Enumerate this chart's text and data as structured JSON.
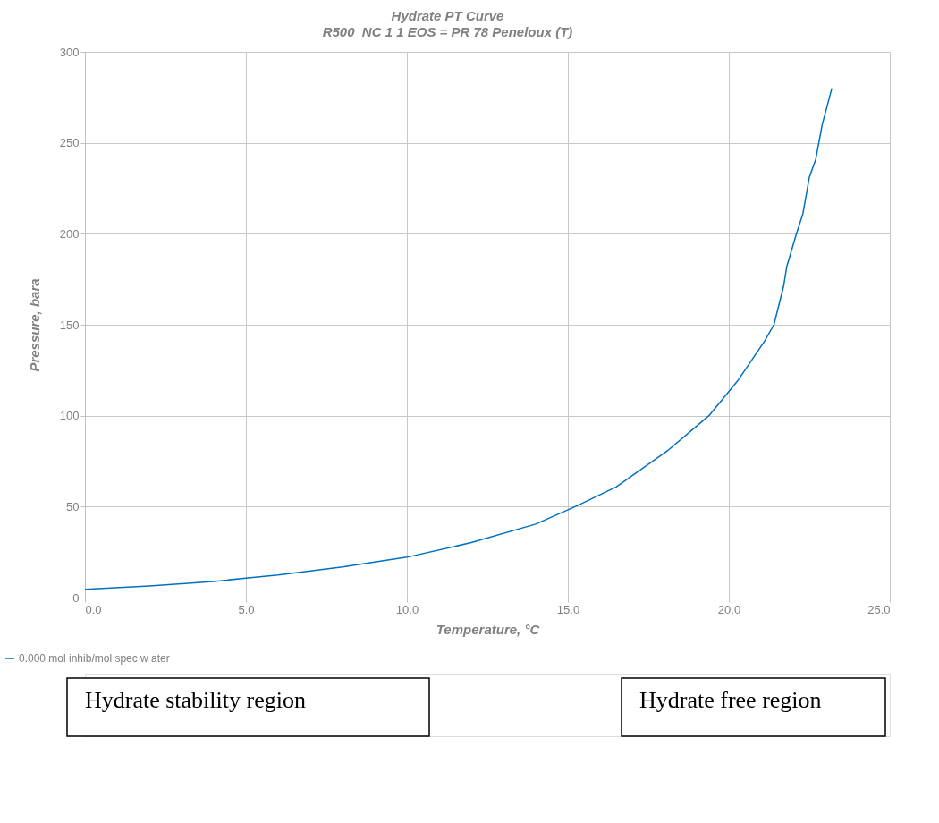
{
  "chart_data": {
    "type": "line",
    "title": "Hydrate PT Curve",
    "subtitle": "R500_NC 1 1  EOS = PR 78 Peneloux (T)",
    "xlabel": "Temperature, °C",
    "ylabel": "Pressure, bara",
    "xlim": [
      0,
      25
    ],
    "xticks": [
      {
        "value": 0,
        "label": "0.0"
      },
      {
        "value": 5,
        "label": "5.0"
      },
      {
        "value": 10,
        "label": "10.0"
      },
      {
        "value": 15,
        "label": "15.0"
      },
      {
        "value": 20,
        "label": "20.0"
      },
      {
        "value": 25,
        "label": "25.0"
      }
    ],
    "ylim": [
      0,
      300
    ],
    "yticks": [
      0,
      50,
      100,
      150,
      200,
      250,
      300
    ],
    "grid": true,
    "legend": "bottom",
    "marker": "none",
    "line_style": "solid",
    "series": [
      {
        "name": "0.000 mol inhib/mol spec w ater",
        "color": "#0070c0",
        "x": [
          0,
          2,
          4,
          5,
          6,
          8,
          10,
          12,
          14,
          15.3,
          16.5,
          18.1,
          19.4,
          20.3,
          21.1,
          21.4,
          21.7,
          21.8,
          22.1,
          22.3,
          22.5,
          22.7,
          22.9,
          23.2
        ],
        "values": [
          4.6,
          6.4,
          8.9,
          10.7,
          12.4,
          16.9,
          22.2,
          30.2,
          40.4,
          50.6,
          60.8,
          80.8,
          100.3,
          119.8,
          140.7,
          150,
          171,
          182,
          200,
          211,
          231,
          241,
          260,
          280
        ]
      }
    ],
    "annotations": [
      "Hydrate stability region",
      "Hydrate free region"
    ]
  }
}
